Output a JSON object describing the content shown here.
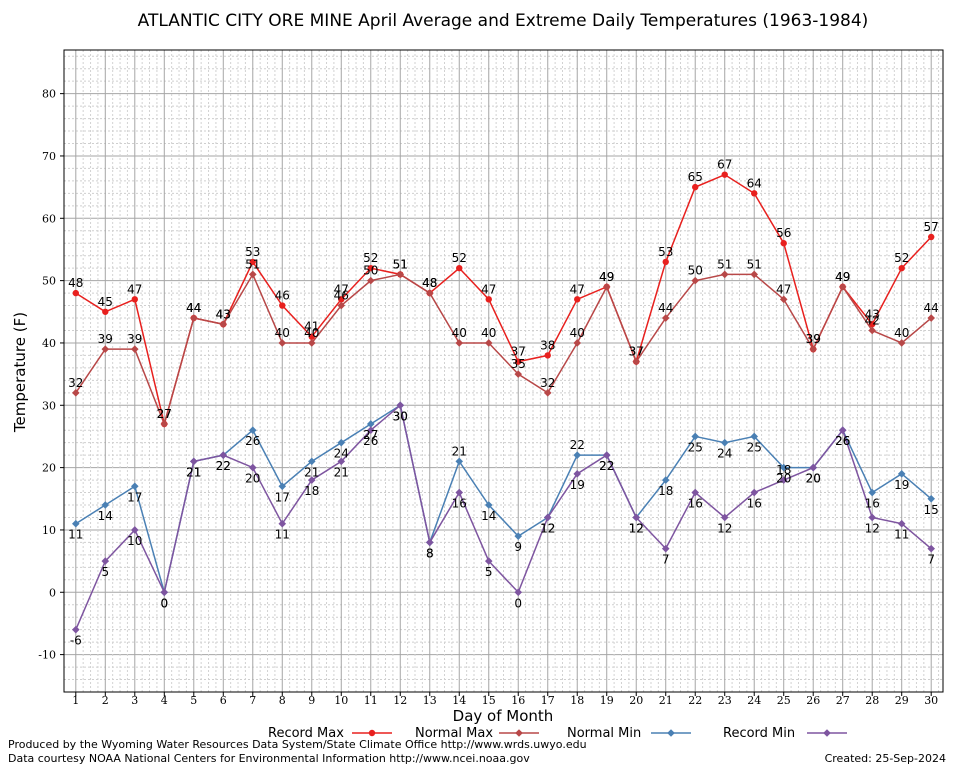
{
  "chart_data": {
    "type": "line",
    "title": "ATLANTIC CITY ORE MINE April Average and Extreme Daily Temperatures (1963-1984)",
    "xlabel": "Day of Month",
    "ylabel": "Temperature (F)",
    "x": [
      1,
      2,
      3,
      4,
      5,
      6,
      7,
      8,
      9,
      10,
      11,
      12,
      13,
      14,
      15,
      16,
      17,
      18,
      19,
      20,
      21,
      22,
      23,
      24,
      25,
      26,
      27,
      28,
      29,
      30
    ],
    "xlim": [
      0.6,
      30.4
    ],
    "ylim": [
      -16,
      87
    ],
    "yticks": [
      -10,
      0,
      10,
      20,
      30,
      40,
      50,
      60,
      70,
      80
    ],
    "grid": true,
    "legend_placement": "bottom",
    "series": [
      {
        "name": "Record Max",
        "color": "#e8201e",
        "marker": "circle",
        "values": [
          48,
          45,
          47,
          27,
          44,
          43,
          53,
          46,
          41,
          47,
          52,
          51,
          48,
          52,
          47,
          37,
          38,
          47,
          49,
          37,
          53,
          65,
          67,
          64,
          56,
          39,
          49,
          43,
          52,
          57
        ],
        "label_pos": [
          "above",
          "above",
          "above",
          "above",
          "above",
          "above",
          "above",
          "above",
          "above",
          "above",
          "above",
          "above",
          "above",
          "above",
          "above",
          "above",
          "above",
          "above",
          "above",
          "above",
          "above",
          "above",
          "above",
          "above",
          "above",
          "above",
          "above",
          "above",
          "above",
          "above"
        ]
      },
      {
        "name": "Normal Max",
        "color": "#b84848",
        "marker": "diamond",
        "values": [
          32,
          39,
          39,
          27,
          44,
          43,
          51,
          40,
          40,
          46,
          50,
          51,
          48,
          40,
          40,
          35,
          32,
          40,
          49,
          37,
          44,
          50,
          51,
          51,
          47,
          39,
          49,
          42,
          40,
          44
        ],
        "label_pos": [
          "above",
          "above",
          "above",
          "above",
          "above",
          "above",
          "above",
          "above",
          "above",
          "above",
          "above",
          "above",
          "above",
          "above",
          "above",
          "above",
          "above",
          "above",
          "above",
          "above",
          "above",
          "above",
          "above",
          "above",
          "above",
          "above",
          "above",
          "above",
          "above",
          "above"
        ]
      },
      {
        "name": "Normal Min",
        "color": "#4a80b4",
        "marker": "diamond",
        "values": [
          11,
          14,
          17,
          0,
          21,
          22,
          26,
          17,
          21,
          24,
          27,
          30,
          8,
          21,
          14,
          9,
          12,
          22,
          22,
          12,
          18,
          25,
          24,
          25,
          20,
          20,
          26,
          16,
          19,
          15
        ],
        "label_pos": [
          "below",
          "below",
          "below",
          "below",
          "below",
          "below",
          "below",
          "below",
          "below",
          "below",
          "below",
          "below",
          "below",
          "above",
          "below",
          "below",
          "below",
          "above",
          "below",
          "below",
          "below",
          "below",
          "below",
          "below",
          "below",
          "below",
          "below",
          "below",
          "below",
          "below"
        ]
      },
      {
        "name": "Record Min",
        "color": "#7e55a0",
        "marker": "diamond",
        "values": [
          -6,
          5,
          10,
          0,
          21,
          22,
          20,
          11,
          18,
          21,
          26,
          30,
          8,
          16,
          5,
          0,
          12,
          19,
          22,
          12,
          7,
          16,
          12,
          16,
          18,
          20,
          26,
          12,
          11,
          7
        ],
        "label_pos": [
          "below",
          "below",
          "below",
          "below",
          "below",
          "below",
          "below",
          "below",
          "below",
          "below",
          "below",
          "below",
          "below",
          "below",
          "below",
          "below",
          "below",
          "below",
          "below",
          "below",
          "below",
          "below",
          "below",
          "below",
          "above",
          "below",
          "below",
          "below",
          "below",
          "below"
        ]
      }
    ]
  },
  "footer": {
    "produced_by": "Produced by the Wyoming Water Resources Data System/State Climate Office http://www.wrds.uwyo.edu",
    "data_courtesy": "Data courtesy NOAA National Centers for Environmental Information http://www.ncei.noaa.gov",
    "created": "Created:  25-Sep-2024"
  }
}
